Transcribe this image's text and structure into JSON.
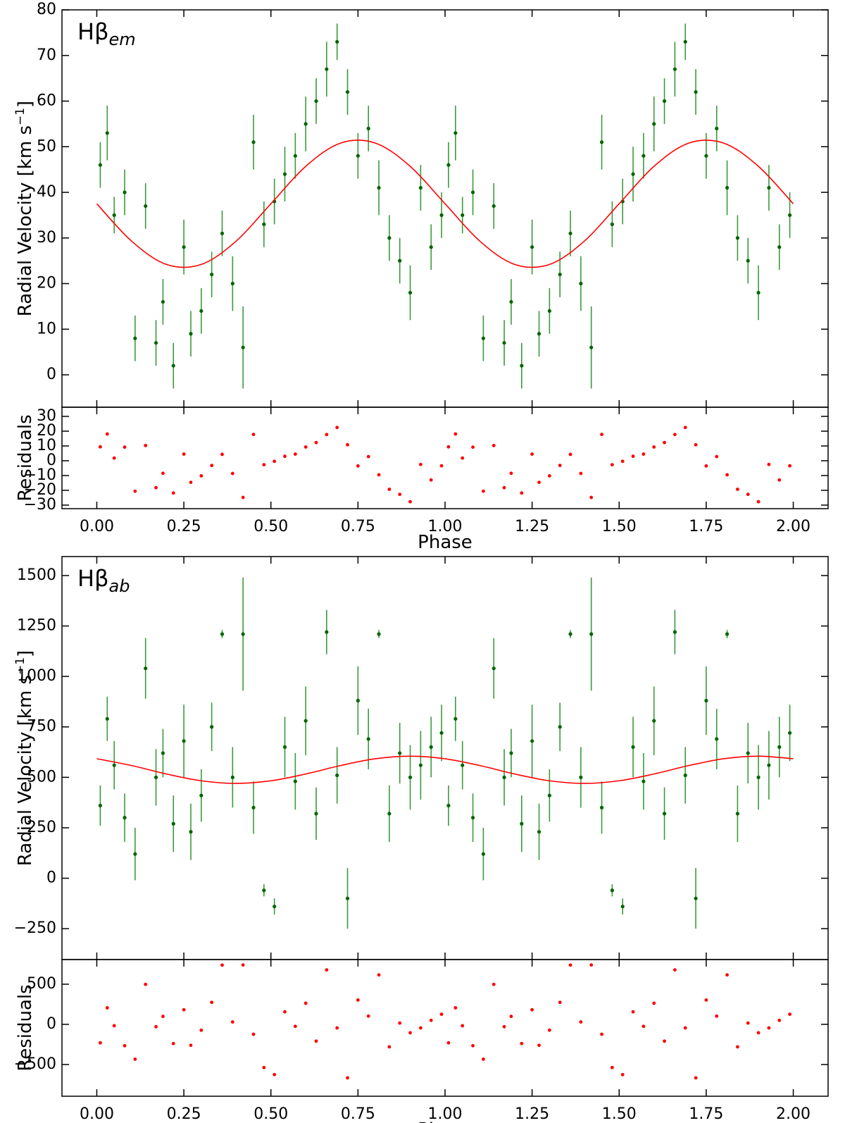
{
  "chart_data": [
    {
      "type": "errorbar",
      "annotation": "Hβ",
      "annotation_sub": "em",
      "ylabel": "Radial Velocity [km s",
      "ylabel_sup": "−1",
      "ylabel_end": "]",
      "xlim": [
        -0.1,
        2.1
      ],
      "xticks": [
        0,
        0.25,
        0.5,
        0.75,
        1,
        1.25,
        1.5,
        1.75,
        2
      ],
      "ylim": [
        -7.1,
        80
      ],
      "yticks": [
        0,
        10,
        20,
        30,
        40,
        50,
        60,
        70,
        80
      ],
      "color": "#006400",
      "error_color": "#3c9a3c",
      "x": [
        0.01,
        0.03,
        0.05,
        0.08,
        0.11,
        0.14,
        0.17,
        0.19,
        0.22,
        0.25,
        0.27,
        0.3,
        0.33,
        0.36,
        0.39,
        0.42,
        0.45,
        0.48,
        0.51,
        0.54,
        0.57,
        0.6,
        0.63,
        0.66,
        0.69,
        0.72,
        0.75,
        0.78,
        0.81,
        0.84,
        0.87,
        0.9,
        0.93,
        0.96,
        0.99,
        1.01,
        1.03,
        1.05,
        1.08,
        1.11,
        1.14,
        1.17,
        1.19,
        1.22,
        1.25,
        1.27,
        1.3,
        1.33,
        1.36,
        1.39,
        1.42,
        1.45,
        1.48,
        1.51,
        1.54,
        1.57,
        1.6,
        1.63,
        1.66,
        1.69,
        1.72,
        1.75,
        1.78,
        1.81,
        1.84,
        1.87,
        1.9,
        1.93,
        1.96,
        1.99
      ],
      "values": [
        46,
        53,
        35,
        40,
        8,
        37,
        7,
        16,
        2,
        28,
        9,
        14,
        22,
        31,
        20,
        6,
        51,
        33,
        38,
        44,
        48,
        55,
        60,
        67,
        73,
        62,
        48,
        54,
        41,
        30,
        25,
        18,
        41,
        28,
        35,
        46,
        53,
        35,
        40,
        8,
        37,
        7,
        16,
        2,
        28,
        9,
        14,
        22,
        31,
        20,
        6,
        51,
        33,
        38,
        44,
        48,
        55,
        60,
        67,
        73,
        62,
        48,
        54,
        41,
        30,
        25,
        18,
        41,
        28,
        35
      ],
      "errors": [
        5,
        6,
        4,
        5,
        5,
        5,
        5,
        5,
        5,
        6,
        5,
        5,
        5,
        5,
        6,
        9,
        6,
        5,
        5,
        6,
        5,
        6,
        5,
        6,
        4,
        5,
        5,
        5,
        6,
        5,
        5,
        6,
        5,
        5,
        5,
        5,
        6,
        4,
        5,
        5,
        5,
        5,
        5,
        5,
        6,
        5,
        5,
        5,
        5,
        6,
        9,
        6,
        5,
        5,
        6,
        5,
        6,
        5,
        6,
        4,
        5,
        5,
        5,
        6,
        5,
        5,
        6,
        5,
        5,
        5
      ],
      "fit": {
        "color": "#ff0000",
        "x": [
          0,
          0.1,
          0.2,
          0.3,
          0.4,
          0.5,
          0.6,
          0.7,
          0.8,
          0.9,
          1,
          1.1,
          1.2,
          1.3,
          1.4,
          1.5,
          1.6,
          1.7,
          1.8,
          1.9,
          2
        ],
        "values": [
          37.5,
          29.3,
          24.2,
          24.2,
          29.3,
          37.5,
          45.7,
          50.8,
          50.8,
          45.7,
          37.5,
          29.3,
          24.2,
          24.2,
          29.3,
          37.5,
          45.7,
          50.8,
          50.8,
          45.7,
          37.5
        ]
      }
    },
    {
      "type": "scatter",
      "ylabel": "Residuals",
      "xlabel": "Phase",
      "xlim": [
        -0.1,
        2.1
      ],
      "xticks": [
        {
          "value": 0,
          "label": "0.00"
        },
        {
          "value": 0.25,
          "label": "0.25"
        },
        {
          "value": 0.5,
          "label": "0.50"
        },
        {
          "value": 0.75,
          "label": "0.75"
        },
        {
          "value": 1,
          "label": "1.00"
        },
        {
          "value": 1.25,
          "label": "1.25"
        },
        {
          "value": 1.5,
          "label": "1.50"
        },
        {
          "value": 1.75,
          "label": "1.75"
        },
        {
          "value": 2,
          "label": "2.00"
        }
      ],
      "ylim": [
        -32.4,
        36.2
      ],
      "yticks": [
        {
          "value": -30,
          "label": "−30"
        },
        {
          "value": -20,
          "label": "−20"
        },
        {
          "value": -10,
          "label": "−10"
        },
        0,
        10,
        20,
        30
      ],
      "color": "#ff0000",
      "x": [
        0.01,
        0.03,
        0.05,
        0.08,
        0.11,
        0.14,
        0.17,
        0.19,
        0.22,
        0.25,
        0.27,
        0.3,
        0.33,
        0.36,
        0.39,
        0.42,
        0.45,
        0.48,
        0.51,
        0.54,
        0.57,
        0.6,
        0.63,
        0.66,
        0.69,
        0.72,
        0.75,
        0.78,
        0.81,
        0.84,
        0.87,
        0.9,
        0.93,
        0.96,
        0.99,
        1.01,
        1.03,
        1.05,
        1.08,
        1.11,
        1.14,
        1.17,
        1.19,
        1.22,
        1.25,
        1.27,
        1.3,
        1.33,
        1.36,
        1.39,
        1.42,
        1.45,
        1.48,
        1.51,
        1.54,
        1.57,
        1.6,
        1.63,
        1.66,
        1.69,
        1.72,
        1.75,
        1.78,
        1.81,
        1.84,
        1.87,
        1.9,
        1.93,
        1.96,
        1.99
      ],
      "values": [
        9.4,
        18.1,
        1.8,
        9.2,
        -20.6,
        10.3,
        -18.2,
        -8.5,
        -21.8,
        4.5,
        -14.6,
        -10.2,
        -3.2,
        4.3,
        -8.6,
        -24.8,
        17.8,
        -2.7,
        -0.4,
        3.0,
        4.5,
        9.3,
        12.3,
        17.7,
        22.5,
        10.8,
        -3.5,
        2.8,
        -9.5,
        -19.3,
        -22.7,
        -27.7,
        -2.5,
        -13.0,
        -3.4,
        9.4,
        18.1,
        1.8,
        9.2,
        -20.6,
        10.3,
        -18.2,
        -8.5,
        -21.8,
        4.5,
        -14.6,
        -10.2,
        -3.2,
        4.3,
        -8.6,
        -24.8,
        17.8,
        -2.7,
        -0.4,
        3.0,
        4.5,
        9.3,
        12.3,
        17.7,
        22.5,
        10.8,
        -3.5,
        2.8,
        -9.5,
        -19.3,
        -22.7,
        -27.7,
        -2.5,
        -13.0,
        -3.4
      ]
    },
    {
      "type": "errorbar",
      "annotation": "Hβ",
      "annotation_sub": "ab",
      "ylabel": "Radial Velocity [km s",
      "ylabel_sup": "−1",
      "ylabel_end": "]",
      "xlim": [
        -0.1,
        2.1
      ],
      "xticks": [
        0,
        0.25,
        0.5,
        0.75,
        1,
        1.25,
        1.5,
        1.75,
        2
      ],
      "ylim": [
        -403,
        1594
      ],
      "yticks": [
        {
          "value": -250,
          "label": "−250"
        },
        0,
        250,
        500,
        750,
        1000,
        1250,
        1500
      ],
      "color": "#006400",
      "error_color": "#3c9a3c",
      "x": [
        0.01,
        0.03,
        0.05,
        0.08,
        0.11,
        0.14,
        0.17,
        0.19,
        0.22,
        0.25,
        0.27,
        0.3,
        0.33,
        0.36,
        0.39,
        0.42,
        0.45,
        0.48,
        0.51,
        0.54,
        0.57,
        0.6,
        0.63,
        0.66,
        0.69,
        0.72,
        0.75,
        0.78,
        0.81,
        0.84,
        0.87,
        0.9,
        0.93,
        0.96,
        0.99,
        1.01,
        1.03,
        1.05,
        1.08,
        1.11,
        1.14,
        1.17,
        1.19,
        1.22,
        1.25,
        1.27,
        1.3,
        1.33,
        1.36,
        1.39,
        1.42,
        1.45,
        1.48,
        1.51,
        1.54,
        1.57,
        1.6,
        1.63,
        1.66,
        1.69,
        1.72,
        1.75,
        1.78,
        1.81,
        1.84,
        1.87,
        1.9,
        1.93,
        1.96,
        1.99
      ],
      "values": [
        360,
        790,
        560,
        300,
        120,
        1040,
        500,
        620,
        270,
        680,
        230,
        410,
        750,
        1210,
        500,
        1210,
        350,
        -60,
        -140,
        650,
        480,
        780,
        320,
        1220,
        510,
        -100,
        880,
        690,
        1210,
        320,
        620,
        500,
        560,
        650,
        720,
        360,
        790,
        560,
        300,
        120,
        1040,
        500,
        620,
        270,
        680,
        230,
        410,
        750,
        1210,
        500,
        1210,
        350,
        -60,
        -140,
        650,
        480,
        780,
        320,
        1220,
        510,
        -100,
        880,
        690,
        1210,
        320,
        620,
        500,
        560,
        650,
        720
      ],
      "errors": [
        100,
        110,
        120,
        120,
        130,
        150,
        140,
        120,
        140,
        180,
        140,
        130,
        120,
        20,
        150,
        280,
        130,
        30,
        40,
        150,
        140,
        170,
        130,
        110,
        140,
        150,
        170,
        150,
        20,
        140,
        150,
        160,
        170,
        150,
        140,
        100,
        110,
        120,
        120,
        130,
        150,
        140,
        120,
        140,
        180,
        140,
        130,
        120,
        20,
        150,
        280,
        130,
        30,
        40,
        150,
        140,
        170,
        130,
        110,
        140,
        150,
        170,
        150,
        20,
        140,
        150,
        160,
        170,
        150,
        140
      ],
      "fit": {
        "color": "#ff0000",
        "x": [
          0,
          0.1,
          0.2,
          0.3,
          0.4,
          0.5,
          0.6,
          0.7,
          0.8,
          0.9,
          1,
          1.1,
          1.2,
          1.3,
          1.4,
          1.5,
          1.6,
          1.7,
          1.8,
          1.9,
          2
        ],
        "values": [
          592.1,
          558.4,
          516.6,
          482.9,
          470,
          482.9,
          516.6,
          558.4,
          592.1,
          605,
          592.1,
          558.4,
          516.6,
          482.9,
          470,
          482.9,
          516.6,
          558.4,
          592.1,
          605,
          592.1
        ]
      }
    },
    {
      "type": "scatter",
      "ylabel": "Residuals",
      "xlabel": "Phase",
      "xlim": [
        -0.1,
        2.1
      ],
      "xticks": [
        {
          "value": 0,
          "label": "0.00"
        },
        {
          "value": 0.25,
          "label": "0.25"
        },
        {
          "value": 0.5,
          "label": "0.50"
        },
        {
          "value": 0.75,
          "label": "0.75"
        },
        {
          "value": 1,
          "label": "1.00"
        },
        {
          "value": 1.25,
          "label": "1.25"
        },
        {
          "value": 1.5,
          "label": "1.50"
        },
        {
          "value": 1.75,
          "label": "1.75"
        },
        {
          "value": 2,
          "label": "2.00"
        }
      ],
      "ylim": [
        -895,
        807
      ],
      "yticks": [
        {
          "value": -500,
          "label": "−500"
        },
        0,
        500
      ],
      "color": "#ff0000",
      "x": [
        0.01,
        0.03,
        0.05,
        0.08,
        0.11,
        0.14,
        0.17,
        0.19,
        0.22,
        0.25,
        0.27,
        0.3,
        0.33,
        0.36,
        0.39,
        0.42,
        0.45,
        0.48,
        0.51,
        0.54,
        0.57,
        0.6,
        0.63,
        0.66,
        0.69,
        0.72,
        0.75,
        0.78,
        0.81,
        0.84,
        0.87,
        0.9,
        0.93,
        0.96,
        0.99,
        1.01,
        1.03,
        1.05,
        1.08,
        1.11,
        1.14,
        1.17,
        1.19,
        1.22,
        1.25,
        1.27,
        1.3,
        1.33,
        1.36,
        1.39,
        1.42,
        1.45,
        1.48,
        1.51,
        1.54,
        1.57,
        1.6,
        1.63,
        1.66,
        1.69,
        1.72,
        1.75,
        1.78,
        1.81,
        1.84,
        1.87,
        1.9,
        1.93,
        1.96,
        1.99
      ],
      "values": [
        -230,
        206,
        -17,
        -266,
        -434,
        498,
        -29,
        99,
        -239,
        182,
        -261,
        -73,
        274,
        738,
        30,
        740,
        -123,
        -538,
        -626,
        156,
        -25,
        263,
        -209,
        678,
        -44,
        -666,
        303,
        103,
        616,
        -280,
        16,
        -105,
        -44,
        50,
        126,
        -230,
        206,
        -17,
        -266,
        -434,
        498,
        -29,
        99,
        -239,
        182,
        -261,
        -73,
        274,
        738,
        30,
        740,
        -123,
        -538,
        -626,
        156,
        -25,
        263,
        -209,
        678,
        -44,
        -666,
        303,
        103,
        616,
        -280,
        16,
        -105,
        -44,
        50,
        126
      ]
    }
  ]
}
